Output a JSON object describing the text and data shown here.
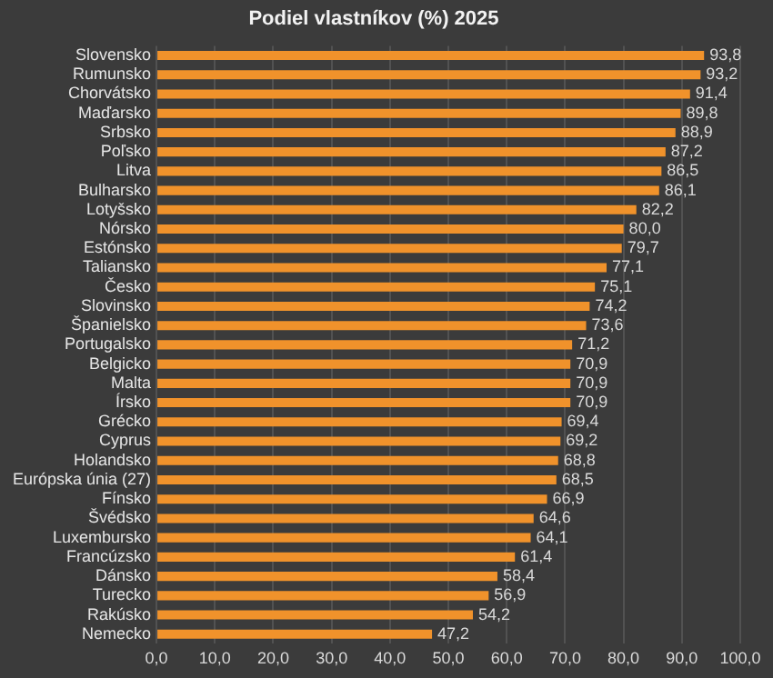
{
  "chart_data": {
    "type": "bar",
    "orientation": "horizontal",
    "title": "Podiel vlastníkov (%) 2025",
    "categories": [
      "Slovensko",
      "Rumunsko",
      "Chorvátsko",
      "Maďarsko",
      "Srbsko",
      "Poľsko",
      "Litva",
      "Bulharsko",
      "Lotyšsko",
      "Nórsko",
      "Estónsko",
      "Taliansko",
      "Česko",
      "Slovinsko",
      "Španielsko",
      "Portugalsko",
      "Belgicko",
      "Malta",
      "Írsko",
      "Grécko",
      "Cyprus",
      "Holandsko",
      "Európska únia (27)",
      "Fínsko",
      "Švédsko",
      "Luxembursko",
      "Francúzsko",
      "Dánsko",
      "Turecko",
      "Rakúsko",
      "Nemecko"
    ],
    "values": [
      93.8,
      93.2,
      91.4,
      89.8,
      88.9,
      87.2,
      86.5,
      86.1,
      82.2,
      80.0,
      79.7,
      77.1,
      75.1,
      74.2,
      73.6,
      71.2,
      70.9,
      70.9,
      70.9,
      69.4,
      69.2,
      68.8,
      68.5,
      66.9,
      64.6,
      64.1,
      61.4,
      58.4,
      56.9,
      54.2,
      47.2
    ],
    "value_labels": [
      "93,8",
      "93,2",
      "91,4",
      "89,8",
      "88,9",
      "87,2",
      "86,5",
      "86,1",
      "82,2",
      "80,0",
      "79,7",
      "77,1",
      "75,1",
      "74,2",
      "73,6",
      "71,2",
      "70,9",
      "70,9",
      "70,9",
      "69,4",
      "69,2",
      "68,8",
      "68,5",
      "66,9",
      "64,6",
      "64,1",
      "61,4",
      "58,4",
      "56,9",
      "54,2",
      "47,2"
    ],
    "color": "#f0922b",
    "xlim": [
      0,
      100
    ],
    "xticks": [
      {
        "value": 0,
        "label": "0,0"
      },
      {
        "value": 10,
        "label": "10,0"
      },
      {
        "value": 20,
        "label": "20,0"
      },
      {
        "value": 30,
        "label": "30,0"
      },
      {
        "value": 40,
        "label": "40,0"
      },
      {
        "value": 50,
        "label": "50,0"
      },
      {
        "value": 60,
        "label": "60,0"
      },
      {
        "value": 70,
        "label": "70,0"
      },
      {
        "value": 80,
        "label": "80,0"
      },
      {
        "value": 90,
        "label": "90,0"
      },
      {
        "value": 100,
        "label": "100,0"
      }
    ],
    "grid": "x"
  }
}
